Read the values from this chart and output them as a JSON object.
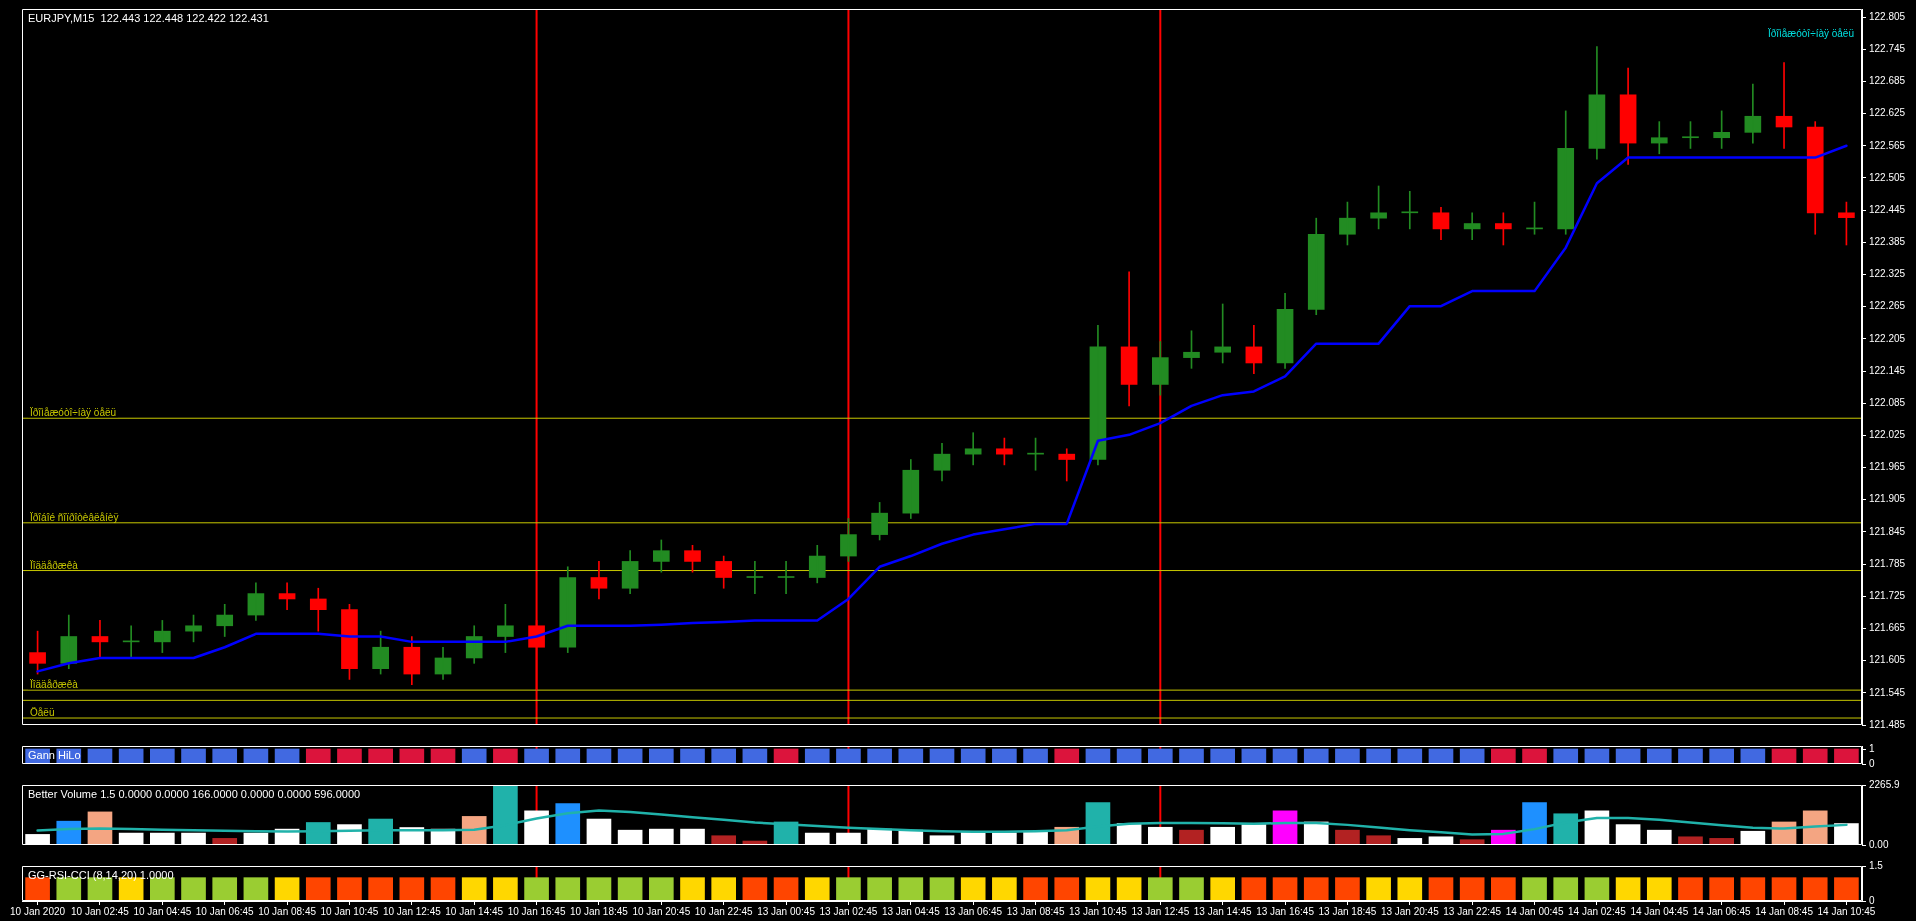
{
  "chart_data": [
    {
      "type": "candlestick",
      "title": "EURJPY,M15  122.443 122.448 122.422 122.431",
      "categories": [
        "10 Jan 2020",
        null,
        "10 Jan 02:45",
        null,
        "10 Jan 04:45",
        null,
        "10 Jan 06:45",
        null,
        "10 Jan 08:45",
        null,
        "10 Jan 10:45",
        null,
        "10 Jan 12:45",
        null,
        "10 Jan 14:45",
        null,
        "10 Jan 16:45",
        null,
        "10 Jan 18:45",
        null,
        "10 Jan 20:45",
        null,
        "10 Jan 22:45",
        null,
        "13 Jan 00:45",
        null,
        "13 Jan 02:45",
        null,
        "13 Jan 04:45",
        null,
        "13 Jan 06:45",
        null,
        "13 Jan 08:45",
        null,
        "13 Jan 10:45",
        null,
        "13 Jan 12:45",
        null,
        "13 Jan 14:45",
        null,
        "13 Jan 16:45",
        null,
        "13 Jan 18:45",
        null,
        "13 Jan 20:45",
        null,
        "13 Jan 22:45",
        null,
        "14 Jan 00:45",
        null,
        "14 Jan 02:45",
        null,
        "14 Jan 04:45",
        null,
        "14 Jan 06:45",
        null,
        "14 Jan 08:45",
        null,
        "14 Jan 10:45"
      ],
      "ohlc": [
        [
          121.62,
          121.66,
          121.58,
          121.6
        ],
        [
          121.6,
          121.69,
          121.59,
          121.65
        ],
        [
          121.65,
          121.68,
          121.61,
          121.64
        ],
        [
          121.64,
          121.67,
          121.61,
          121.64
        ],
        [
          121.64,
          121.68,
          121.62,
          121.66
        ],
        [
          121.66,
          121.69,
          121.64,
          121.67
        ],
        [
          121.67,
          121.71,
          121.65,
          121.69
        ],
        [
          121.69,
          121.75,
          121.68,
          121.73
        ],
        [
          121.73,
          121.75,
          121.7,
          121.72
        ],
        [
          121.72,
          121.74,
          121.66,
          121.7
        ],
        [
          121.7,
          121.71,
          121.57,
          121.59
        ],
        [
          121.59,
          121.66,
          121.58,
          121.63
        ],
        [
          121.63,
          121.65,
          121.56,
          121.58
        ],
        [
          121.58,
          121.63,
          121.57,
          121.61
        ],
        [
          121.61,
          121.67,
          121.6,
          121.65
        ],
        [
          121.65,
          121.71,
          121.62,
          121.67
        ],
        [
          121.67,
          121.68,
          121.55,
          121.63
        ],
        [
          121.63,
          121.78,
          121.62,
          121.76
        ],
        [
          121.76,
          121.79,
          121.72,
          121.74
        ],
        [
          121.74,
          121.81,
          121.73,
          121.79
        ],
        [
          121.79,
          121.83,
          121.77,
          121.81
        ],
        [
          121.81,
          121.82,
          121.77,
          121.79
        ],
        [
          121.79,
          121.8,
          121.74,
          121.76
        ],
        [
          121.76,
          121.79,
          121.73,
          121.76
        ],
        [
          121.76,
          121.79,
          121.73,
          121.76
        ],
        [
          121.76,
          121.82,
          121.75,
          121.8
        ],
        [
          121.8,
          121.87,
          121.79,
          121.84
        ],
        [
          121.84,
          121.9,
          121.83,
          121.88
        ],
        [
          121.88,
          121.98,
          121.87,
          121.96
        ],
        [
          121.96,
          122.01,
          121.94,
          121.99
        ],
        [
          121.99,
          122.03,
          121.97,
          122.0
        ],
        [
          122.0,
          122.02,
          121.97,
          121.99
        ],
        [
          121.99,
          122.02,
          121.96,
          121.99
        ],
        [
          121.99,
          122.0,
          121.94,
          121.98
        ],
        [
          121.98,
          122.23,
          121.97,
          122.19
        ],
        [
          122.19,
          122.33,
          122.08,
          122.12
        ],
        [
          122.12,
          122.2,
          122.1,
          122.17
        ],
        [
          122.17,
          122.22,
          122.15,
          122.18
        ],
        [
          122.18,
          122.27,
          122.16,
          122.19
        ],
        [
          122.19,
          122.23,
          122.14,
          122.16
        ],
        [
          122.16,
          122.29,
          122.15,
          122.26
        ],
        [
          122.26,
          122.43,
          122.25,
          122.4
        ],
        [
          122.4,
          122.46,
          122.38,
          122.43
        ],
        [
          122.43,
          122.49,
          122.41,
          122.44
        ],
        [
          122.44,
          122.48,
          122.41,
          122.44
        ],
        [
          122.44,
          122.45,
          122.39,
          122.41
        ],
        [
          122.41,
          122.44,
          122.39,
          122.42
        ],
        [
          122.42,
          122.44,
          122.38,
          122.41
        ],
        [
          122.41,
          122.46,
          122.4,
          122.41
        ],
        [
          122.41,
          122.63,
          122.4,
          122.56
        ],
        [
          122.56,
          122.75,
          122.54,
          122.66
        ],
        [
          122.66,
          122.71,
          122.53,
          122.57
        ],
        [
          122.57,
          122.61,
          122.55,
          122.58
        ],
        [
          122.58,
          122.61,
          122.56,
          122.58
        ],
        [
          122.58,
          122.63,
          122.56,
          122.59
        ],
        [
          122.59,
          122.68,
          122.57,
          122.62
        ],
        [
          122.62,
          122.72,
          122.56,
          122.6
        ],
        [
          122.6,
          122.61,
          122.4,
          122.44
        ],
        [
          122.44,
          122.46,
          122.38,
          122.431
        ]
      ],
      "colors": [
        "#ff0000",
        "#228b22",
        "#ff0000",
        "#228b22",
        "#228b22",
        "#228b22",
        "#228b22",
        "#228b22",
        "#ff0000",
        "#ff0000",
        "#ff0000",
        "#228b22",
        "#ff0000",
        "#228b22",
        "#228b22",
        "#228b22",
        "#ff0000",
        "#228b22",
        "#ff0000",
        "#228b22",
        "#228b22",
        "#ff0000",
        "#ff0000",
        "#228b22",
        "#228b22",
        "#228b22",
        "#228b22",
        "#228b22",
        "#228b22",
        "#228b22",
        "#228b22",
        "#ff0000",
        "#228b22",
        "#ff0000",
        "#228b22",
        "#ff0000",
        "#228b22",
        "#228b22",
        "#228b22",
        "#ff0000",
        "#228b22",
        "#228b22",
        "#228b22",
        "#228b22",
        "#228b22",
        "#ff0000",
        "#228b22",
        "#ff0000",
        "#228b22",
        "#228b22",
        "#228b22",
        "#ff0000",
        "#228b22",
        "#228b22",
        "#228b22",
        "#228b22",
        "#ff0000",
        "#ff0000",
        "#ff0000"
      ],
      "series": [
        {
          "type": "line",
          "color": "#0000ff",
          "values": [
            121.585,
            121.6,
            121.61,
            121.61,
            121.61,
            121.61,
            121.63,
            121.655,
            121.655,
            121.655,
            121.65,
            121.65,
            121.64,
            121.64,
            121.64,
            121.64,
            121.65,
            121.67,
            121.67,
            121.67,
            121.672,
            121.675,
            121.677,
            121.68,
            121.68,
            121.68,
            121.72,
            121.78,
            121.8,
            121.823,
            121.84,
            121.85,
            121.86,
            121.86,
            122.015,
            122.026,
            122.048,
            122.08,
            122.1,
            122.107,
            122.135,
            122.196,
            122.196,
            122.196,
            122.266,
            122.266,
            122.294,
            122.294,
            122.294,
            122.375,
            122.495,
            122.543,
            122.543,
            122.543,
            122.543,
            122.543,
            122.543,
            122.543,
            122.565
          ]
        }
      ],
      "ylim": [
        121.485,
        122.82
      ],
      "yticks": [
        121.485,
        121.545,
        121.605,
        121.665,
        121.725,
        121.785,
        121.845,
        121.905,
        121.965,
        122.025,
        122.085,
        122.145,
        122.205,
        122.265,
        122.325,
        122.385,
        122.445,
        122.505,
        122.565,
        122.625,
        122.685,
        122.745,
        122.805
      ],
      "tick_labels": "y",
      "ref_lines": [
        {
          "axis": "x",
          "value": "10 Jan 16:45",
          "color": "#ff0000"
        },
        {
          "axis": "x",
          "value": "13 Jan 02:45",
          "color": "#ff0000"
        },
        {
          "axis": "x",
          "value": "13 Jan 12:45",
          "color": "#ff0000"
        },
        {
          "axis": "y",
          "value": 122.057,
          "color": "#c8c800",
          "label": "Ïðîìåæóòî÷íàÿ öåëü"
        },
        {
          "axis": "y",
          "value": 121.862,
          "color": "#c8c800",
          "label": "Ïðîáîé ñîïðîòèâëåíèÿ"
        },
        {
          "axis": "y",
          "value": 121.773,
          "color": "#c8c800",
          "label": "Ïîääåðæêà"
        },
        {
          "axis": "y",
          "value": 121.55,
          "color": "#c8c800",
          "label": "Ïîääåðæêà"
        },
        {
          "axis": "y",
          "value": 121.531,
          "color": "#c8c800"
        },
        {
          "axis": "y",
          "value": 121.498,
          "color": "#c8c800",
          "label": "Öåëü"
        }
      ],
      "annotations": [
        "Ïðîìåæóòî÷íàÿ öåëü"
      ]
    },
    {
      "type": "bar",
      "title": "Gann HiLo",
      "categories": [
        "10 Jan 2020",
        null,
        "10 Jan 02:45",
        null,
        "10 Jan 04:45",
        null,
        "10 Jan 06:45",
        null,
        "10 Jan 08:45",
        null,
        "10 Jan 10:45",
        null,
        "10 Jan 12:45",
        null,
        "10 Jan 14:45",
        null,
        "10 Jan 16:45",
        null,
        "10 Jan 18:45",
        null,
        "10 Jan 20:45",
        null,
        "10 Jan 22:45",
        null,
        "13 Jan 00:45",
        null,
        "13 Jan 02:45",
        null,
        "13 Jan 04:45",
        null,
        "13 Jan 06:45",
        null,
        "13 Jan 08:45",
        null,
        "13 Jan 10:45",
        null,
        "13 Jan 12:45",
        null,
        "13 Jan 14:45",
        null,
        "13 Jan 16:45",
        null,
        "13 Jan 18:45",
        null,
        "13 Jan 20:45",
        null,
        "13 Jan 22:45",
        null,
        "14 Jan 00:45",
        null,
        "14 Jan 02:45",
        null,
        "14 Jan 04:45",
        null,
        "14 Jan 06:45",
        null,
        "14 Jan 08:45",
        null,
        "14 Jan 10:45"
      ],
      "values": [
        1,
        1,
        1,
        1,
        1,
        1,
        1,
        1,
        1,
        1,
        1,
        1,
        1,
        1,
        1,
        1,
        1,
        1,
        1,
        1,
        1,
        1,
        1,
        1,
        1,
        1,
        1,
        1,
        1,
        1,
        1,
        1,
        1,
        1,
        1,
        1,
        1,
        1,
        1,
        1,
        1,
        1,
        1,
        1,
        1,
        1,
        1,
        1,
        1,
        1,
        1,
        1,
        1,
        1,
        1,
        1,
        1,
        1,
        1
      ],
      "colors": [
        "#4169e1",
        "#4169e1",
        "#4169e1",
        "#4169e1",
        "#4169e1",
        "#4169e1",
        "#4169e1",
        "#4169e1",
        "#4169e1",
        "#dc143c",
        "#dc143c",
        "#dc143c",
        "#dc143c",
        "#dc143c",
        "#4169e1",
        "#dc143c",
        "#4169e1",
        "#4169e1",
        "#4169e1",
        "#4169e1",
        "#4169e1",
        "#4169e1",
        "#4169e1",
        "#4169e1",
        "#dc143c",
        "#4169e1",
        "#4169e1",
        "#4169e1",
        "#4169e1",
        "#4169e1",
        "#4169e1",
        "#4169e1",
        "#4169e1",
        "#dc143c",
        "#4169e1",
        "#4169e1",
        "#4169e1",
        "#4169e1",
        "#4169e1",
        "#4169e1",
        "#4169e1",
        "#4169e1",
        "#4169e1",
        "#4169e1",
        "#4169e1",
        "#4169e1",
        "#4169e1",
        "#dc143c",
        "#dc143c",
        "#4169e1",
        "#4169e1",
        "#4169e1",
        "#4169e1",
        "#4169e1",
        "#4169e1",
        "#4169e1",
        "#dc143c",
        "#dc143c",
        "#dc143c"
      ],
      "ylim": [
        0,
        1.2
      ],
      "yticks": [
        0,
        1
      ],
      "tick_labels": "y",
      "ref_lines": [
        {
          "axis": "x",
          "value": "10 Jan 16:45",
          "color": "#ff0000"
        },
        {
          "axis": "x",
          "value": "13 Jan 02:45",
          "color": "#ff0000"
        },
        {
          "axis": "x",
          "value": "13 Jan 12:45",
          "color": "#ff0000"
        }
      ]
    },
    {
      "type": "bar",
      "title": "Better Volume 1.5 0.0000 0.0000 166.0000 0.0000 0.0000 596.0000",
      "categories": [
        "10 Jan 2020",
        null,
        "10 Jan 02:45",
        null,
        "10 Jan 04:45",
        null,
        "10 Jan 06:45",
        null,
        "10 Jan 08:45",
        null,
        "10 Jan 10:45",
        null,
        "10 Jan 12:45",
        null,
        "10 Jan 14:45",
        null,
        "10 Jan 16:45",
        null,
        "10 Jan 18:45",
        null,
        "10 Jan 20:45",
        null,
        "10 Jan 22:45",
        null,
        "13 Jan 00:45",
        null,
        "13 Jan 02:45",
        null,
        "13 Jan 04:45",
        null,
        "13 Jan 06:45",
        null,
        "13 Jan 08:45",
        null,
        "13 Jan 10:45",
        null,
        "13 Jan 12:45",
        null,
        "13 Jan 14:45",
        null,
        "13 Jan 16:45",
        null,
        "13 Jan 18:45",
        null,
        "13 Jan 20:45",
        null,
        "13 Jan 22:45",
        null,
        "14 Jan 00:45",
        null,
        "14 Jan 02:45",
        null,
        "14 Jan 04:45",
        null,
        "14 Jan 06:45",
        null,
        "14 Jan 08:45",
        null,
        "14 Jan 10:45"
      ],
      "series": [
        {
          "values": [
            400,
            900,
            1250,
            450,
            450,
            450,
            250,
            450,
            600,
            850,
            770,
            980,
            660,
            600,
            1080,
            2265.9,
            1290,
            1560,
            980,
            560,
            600,
            600,
            350,
            150,
            870,
            450,
            450,
            600,
            560,
            350,
            500,
            460,
            520,
            670,
            1600,
            810,
            670,
            560,
            670,
            770,
            1290,
            870,
            560,
            350,
            250,
            310,
            200,
            560,
            1600,
            1180,
            1290,
            770,
            560,
            310,
            250,
            520,
            870,
            1290,
            810
          ],
          "colors": [
            "#ffffff",
            "#1e90ff",
            "#f4a582",
            "#ffffff",
            "#ffffff",
            "#ffffff",
            "#b22222",
            "#ffffff",
            "#ffffff",
            "#20b2aa",
            "#ffffff",
            "#20b2aa",
            "#ffffff",
            "#ffffff",
            "#f4a582",
            "#20b2aa",
            "#ffffff",
            "#1e90ff",
            "#ffffff",
            "#ffffff",
            "#ffffff",
            "#ffffff",
            "#b22222",
            "#b22222",
            "#20b2aa",
            "#ffffff",
            "#ffffff",
            "#ffffff",
            "#ffffff",
            "#ffffff",
            "#ffffff",
            "#ffffff",
            "#ffffff",
            "#f4a582",
            "#20b2aa",
            "#ffffff",
            "#ffffff",
            "#b22222",
            "#ffffff",
            "#ffffff",
            "#ff00ff",
            "#ffffff",
            "#b22222",
            "#b22222",
            "#ffffff",
            "#ffffff",
            "#b22222",
            "#ff00ff",
            "#1e90ff",
            "#20b2aa",
            "#ffffff",
            "#ffffff",
            "#ffffff",
            "#b22222",
            "#b22222",
            "#ffffff",
            "#f4a582",
            "#f4a582",
            "#ffffff"
          ]
        },
        {
          "type": "line",
          "color": "#20b2aa",
          "values": [
            550,
            600,
            620,
            600,
            580,
            560,
            540,
            520,
            510,
            520,
            540,
            560,
            560,
            560,
            580,
            750,
            1000,
            1200,
            1300,
            1250,
            1150,
            1050,
            950,
            850,
            780,
            720,
            650,
            600,
            560,
            520,
            500,
            500,
            520,
            560,
            700,
            800,
            830,
            830,
            820,
            800,
            830,
            830,
            760,
            660,
            560,
            480,
            400,
            420,
            600,
            850,
            1020,
            1020,
            950,
            850,
            750,
            650,
            620,
            700,
            760
          ]
        }
      ],
      "ylim": [
        0,
        2265.9
      ],
      "yticks": [
        {
          "value": 0,
          "label": "0.00"
        },
        2265.9
      ],
      "tick_labels": "y",
      "ref_lines": [
        {
          "axis": "x",
          "value": "10 Jan 16:45",
          "color": "#ff0000"
        },
        {
          "axis": "x",
          "value": "13 Jan 02:45",
          "color": "#ff0000"
        },
        {
          "axis": "x",
          "value": "13 Jan 12:45",
          "color": "#ff0000"
        }
      ]
    },
    {
      "type": "bar",
      "title": "GG-RSI-CCI (8,14,20) 1.0000",
      "categories": [
        "10 Jan 2020",
        null,
        "10 Jan 02:45",
        null,
        "10 Jan 04:45",
        null,
        "10 Jan 06:45",
        null,
        "10 Jan 08:45",
        null,
        "10 Jan 10:45",
        null,
        "10 Jan 12:45",
        null,
        "10 Jan 14:45",
        null,
        "10 Jan 16:45",
        null,
        "10 Jan 18:45",
        null,
        "10 Jan 20:45",
        null,
        "10 Jan 22:45",
        null,
        "13 Jan 00:45",
        null,
        "13 Jan 02:45",
        null,
        "13 Jan 04:45",
        null,
        "13 Jan 06:45",
        null,
        "13 Jan 08:45",
        null,
        "13 Jan 10:45",
        null,
        "13 Jan 12:45",
        null,
        "13 Jan 14:45",
        null,
        "13 Jan 16:45",
        null,
        "13 Jan 18:45",
        null,
        "13 Jan 20:45",
        null,
        "13 Jan 22:45",
        null,
        "14 Jan 00:45",
        null,
        "14 Jan 02:45",
        null,
        "14 Jan 04:45",
        null,
        "14 Jan 06:45",
        null,
        "14 Jan 08:45",
        null,
        "14 Jan 10:45"
      ],
      "values": [
        1,
        1,
        1,
        1,
        1,
        1,
        1,
        1,
        1,
        1,
        1,
        1,
        1,
        1,
        1,
        1,
        1,
        1,
        1,
        1,
        1,
        1,
        1,
        1,
        1,
        1,
        1,
        1,
        1,
        1,
        1,
        1,
        1,
        1,
        1,
        1,
        1,
        1,
        1,
        1,
        1,
        1,
        1,
        1,
        1,
        1,
        1,
        1,
        1,
        1,
        1,
        1,
        1,
        1,
        1,
        1,
        1,
        1,
        1
      ],
      "colors": [
        "#ff4500",
        "#9acd32",
        "#9acd32",
        "#ffd700",
        "#9acd32",
        "#9acd32",
        "#9acd32",
        "#9acd32",
        "#ffd700",
        "#ff4500",
        "#ff4500",
        "#ff4500",
        "#ff4500",
        "#ff4500",
        "#ffd700",
        "#ffd700",
        "#9acd32",
        "#9acd32",
        "#9acd32",
        "#9acd32",
        "#9acd32",
        "#ffd700",
        "#ffd700",
        "#ff4500",
        "#ff4500",
        "#ffd700",
        "#9acd32",
        "#9acd32",
        "#9acd32",
        "#9acd32",
        "#ffd700",
        "#ffd700",
        "#ff4500",
        "#ff4500",
        "#ffd700",
        "#ffd700",
        "#9acd32",
        "#9acd32",
        "#ffd700",
        "#ff4500",
        "#ff4500",
        "#ff4500",
        "#ff4500",
        "#ffd700",
        "#ffd700",
        "#ff4500",
        "#ff4500",
        "#ff4500",
        "#9acd32",
        "#9acd32",
        "#9acd32",
        "#ffd700",
        "#ffd700",
        "#ff4500",
        "#ff4500",
        "#ff4500",
        "#ff4500",
        "#ff4500",
        "#ff4500"
      ],
      "ylim": [
        0,
        1.5
      ],
      "yticks": [
        0,
        1.5
      ],
      "ref_lines": [
        {
          "axis": "x",
          "value": "10 Jan 16:45",
          "color": "#ff0000"
        },
        {
          "axis": "x",
          "value": "13 Jan 02:45",
          "color": "#ff0000"
        },
        {
          "axis": "x",
          "value": "13 Jan 12:45",
          "color": "#ff0000"
        }
      ]
    }
  ]
}
